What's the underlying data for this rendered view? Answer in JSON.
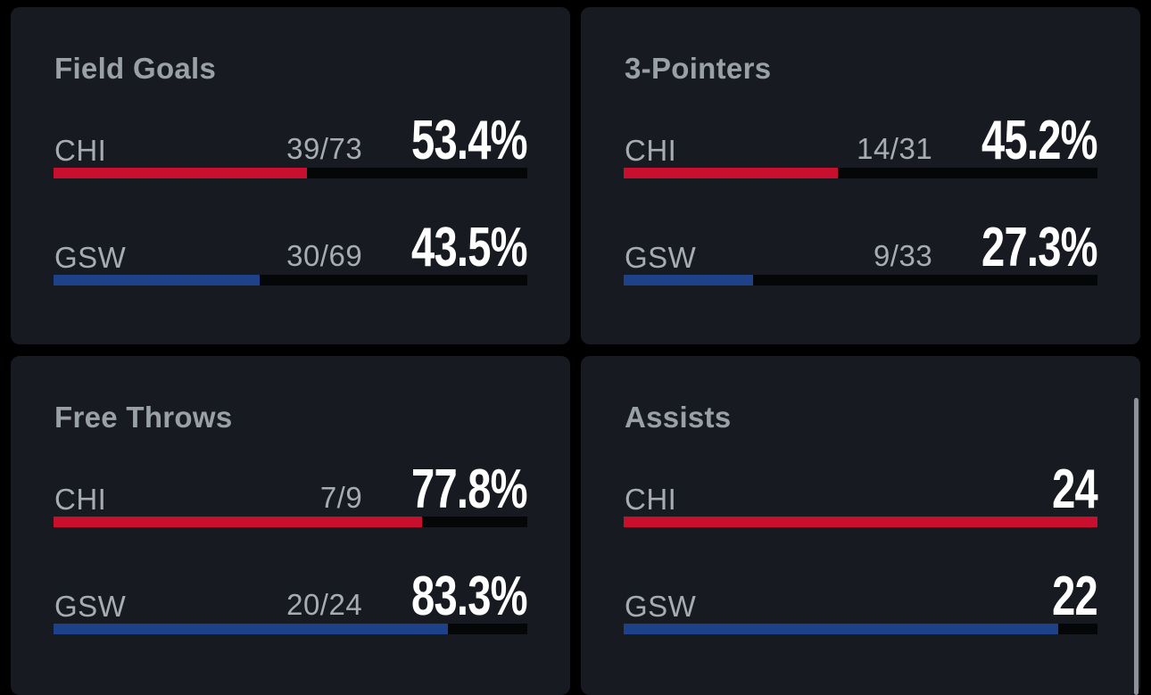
{
  "colors": {
    "chi": "#c8102e",
    "gsw": "#1d428a"
  },
  "cards": [
    {
      "title": "Field Goals",
      "rows": [
        {
          "team": "CHI",
          "made_att": "39/73",
          "value": "53.4%",
          "fill": 0.534,
          "color": "chi"
        },
        {
          "team": "GSW",
          "made_att": "30/69",
          "value": "43.5%",
          "fill": 0.435,
          "color": "gsw"
        }
      ]
    },
    {
      "title": "3-Pointers",
      "rows": [
        {
          "team": "CHI",
          "made_att": "14/31",
          "value": "45.2%",
          "fill": 0.452,
          "color": "chi"
        },
        {
          "team": "GSW",
          "made_att": "9/33",
          "value": "27.3%",
          "fill": 0.273,
          "color": "gsw"
        }
      ]
    },
    {
      "title": "Free Throws",
      "rows": [
        {
          "team": "CHI",
          "made_att": "7/9",
          "value": "77.8%",
          "fill": 0.778,
          "color": "chi"
        },
        {
          "team": "GSW",
          "made_att": "20/24",
          "value": "83.3%",
          "fill": 0.833,
          "color": "gsw"
        }
      ]
    },
    {
      "title": "Assists",
      "rows": [
        {
          "team": "CHI",
          "made_att": "",
          "value": "24",
          "fill": 1.0,
          "color": "chi"
        },
        {
          "team": "GSW",
          "made_att": "",
          "value": "22",
          "fill": 0.917,
          "color": "gsw"
        }
      ]
    }
  ]
}
